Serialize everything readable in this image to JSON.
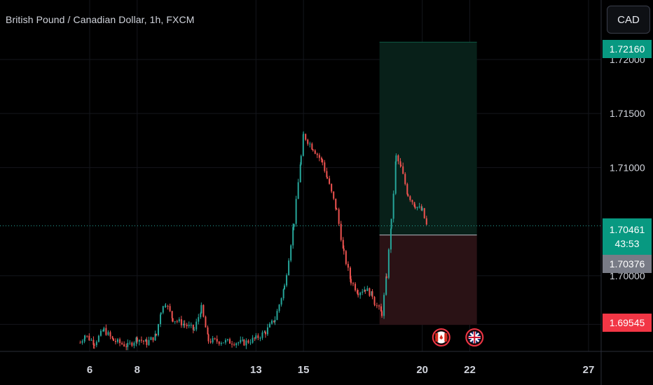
{
  "header": {
    "title": "British Pound / Canadian Dollar, 1h, FXCM",
    "currency_button": "CAD"
  },
  "price_tags": {
    "target": "1.72160",
    "current": "1.70461",
    "countdown": "43:53",
    "entry": "1.70376",
    "stop": "1.69545"
  },
  "colors": {
    "background": "#000000",
    "up": "#26a69a",
    "down": "#ef5350",
    "profit_zone": "#082019",
    "loss_zone": "#2a1215",
    "grid": "#14161c",
    "text": "#d1d4dc"
  },
  "events": [
    {
      "icon": "canada-flag-icon",
      "date_index": 20.8
    },
    {
      "icon": "uk-flag-icon",
      "date_index": 22.2
    }
  ],
  "chart_data": {
    "type": "candlestick",
    "symbol": "GBP/CAD",
    "timeframe": "1h",
    "x_ticks": [
      "6",
      "8",
      "13",
      "15",
      "20",
      "22",
      "27"
    ],
    "y_ticks": [
      "1.72000",
      "1.71500",
      "1.71000",
      "1.70000"
    ],
    "ylim": [
      1.693,
      1.7255
    ],
    "position": {
      "direction": "long",
      "entry": 1.70376,
      "target": 1.7216,
      "stop": 1.69545
    },
    "series": [
      {
        "name": "price_path",
        "points": [
          [
            5.6,
            1.6938
          ],
          [
            5.8,
            1.6945
          ],
          [
            6.2,
            1.6938
          ],
          [
            6.6,
            1.695
          ],
          [
            7.0,
            1.694
          ],
          [
            7.6,
            1.6935
          ],
          [
            8.0,
            1.6942
          ],
          [
            8.4,
            1.6938
          ],
          [
            8.8,
            1.6945
          ],
          [
            9.0,
            1.6968
          ],
          [
            9.2,
            1.6975
          ],
          [
            9.5,
            1.696
          ],
          [
            10.0,
            1.6955
          ],
          [
            10.4,
            1.695
          ],
          [
            10.7,
            1.697
          ],
          [
            11.0,
            1.694
          ],
          [
            12.5,
            1.6938
          ],
          [
            13.0,
            1.6942
          ],
          [
            13.4,
            1.6948
          ],
          [
            13.8,
            1.696
          ],
          [
            14.2,
            1.699
          ],
          [
            14.6,
            1.705
          ],
          [
            14.9,
            1.711
          ],
          [
            15.0,
            1.713
          ],
          [
            15.4,
            1.7118
          ],
          [
            15.8,
            1.7105
          ],
          [
            16.0,
            1.709
          ],
          [
            16.4,
            1.706
          ],
          [
            16.7,
            1.702
          ],
          [
            17.0,
            1.6995
          ],
          [
            17.3,
            1.6985
          ],
          [
            17.6,
            1.6988
          ],
          [
            17.9,
            1.6982
          ],
          [
            18.0,
            1.6975
          ],
          [
            18.3,
            1.6965
          ],
          [
            18.5,
            1.7
          ],
          [
            18.7,
            1.705
          ],
          [
            18.9,
            1.711
          ],
          [
            19.1,
            1.71
          ],
          [
            19.4,
            1.7075
          ],
          [
            19.7,
            1.7065
          ],
          [
            20.0,
            1.706
          ],
          [
            20.2,
            1.7045
          ]
        ]
      }
    ]
  }
}
